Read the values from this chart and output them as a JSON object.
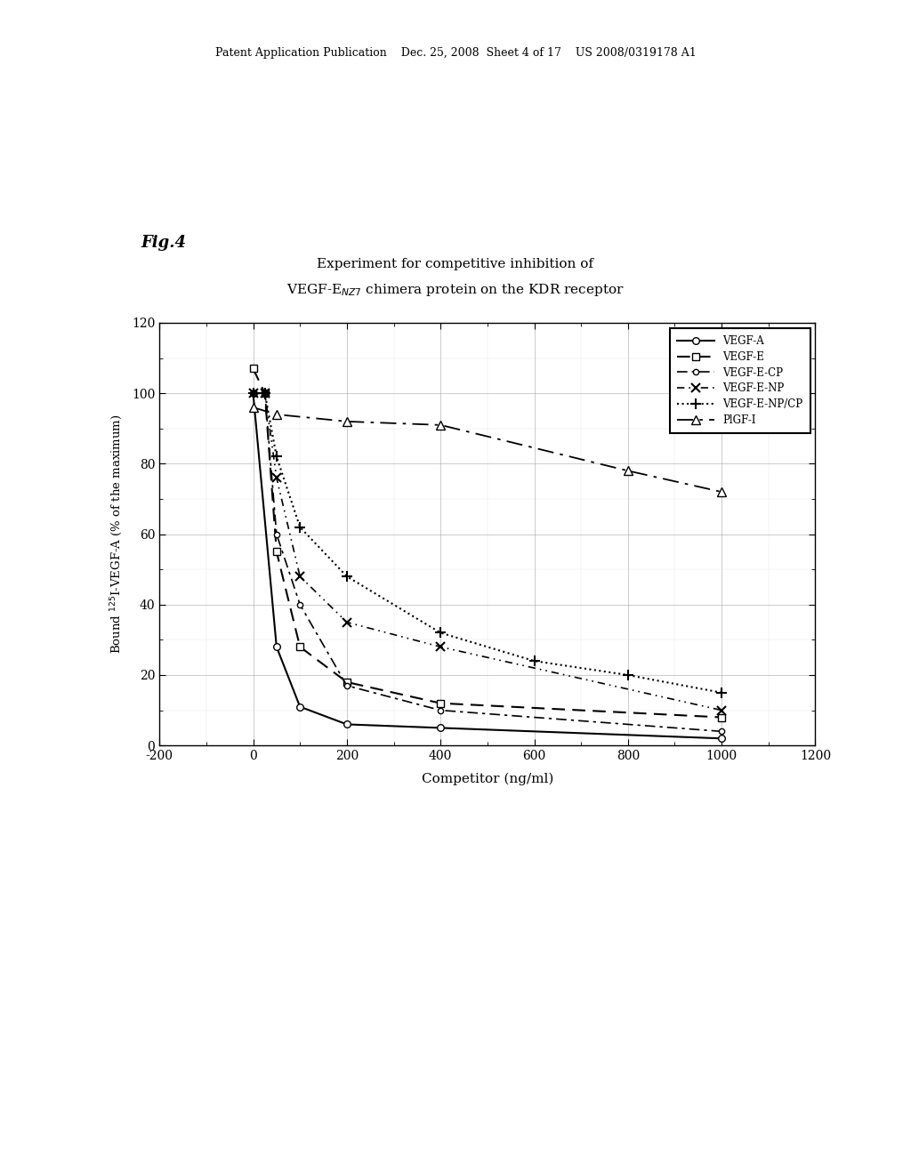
{
  "fig_label": "Fig.4",
  "title_line1": "Experiment for competitive inhibition of",
  "title_line2": "VEGF-E$_{NZ7}$ chimera protein on the KDR receptor",
  "xlabel": "Competitor (ng/ml)",
  "ylabel": "Bound $^{125}$I-VEGF-A (% of the maximum)",
  "xlim": [
    -200,
    1200
  ],
  "ylim": [
    0,
    120
  ],
  "xticks": [
    -200,
    0,
    200,
    400,
    600,
    800,
    1000,
    1200
  ],
  "yticks": [
    0,
    20,
    40,
    60,
    80,
    100,
    120
  ],
  "header": "Patent Application Publication    Dec. 25, 2008  Sheet 4 of 17    US 2008/0319178 A1",
  "VEGF_A_x": [
    0,
    50,
    100,
    200,
    400,
    1000
  ],
  "VEGF_A_y": [
    100,
    28,
    11,
    6,
    5,
    2
  ],
  "VEGF_E_x": [
    0,
    25,
    50,
    100,
    200,
    400,
    1000
  ],
  "VEGF_E_y": [
    107,
    100,
    55,
    28,
    18,
    12,
    8
  ],
  "VEGF_E_CP_x": [
    0,
    25,
    50,
    100,
    200,
    400,
    1000
  ],
  "VEGF_E_CP_y": [
    100,
    100,
    60,
    40,
    17,
    10,
    4
  ],
  "VEGF_E_NP_x": [
    0,
    25,
    50,
    100,
    200,
    400,
    1000
  ],
  "VEGF_E_NP_y": [
    100,
    100,
    76,
    48,
    35,
    28,
    10
  ],
  "VEGF_E_NP_CP_x": [
    0,
    25,
    50,
    100,
    200,
    400,
    600,
    800,
    1000
  ],
  "VEGF_E_NP_CP_y": [
    100,
    100,
    82,
    62,
    48,
    32,
    24,
    20,
    15
  ],
  "PlGF_I_x": [
    0,
    50,
    200,
    400,
    800,
    1000
  ],
  "PlGF_I_y": [
    96,
    94,
    92,
    91,
    78,
    72
  ]
}
